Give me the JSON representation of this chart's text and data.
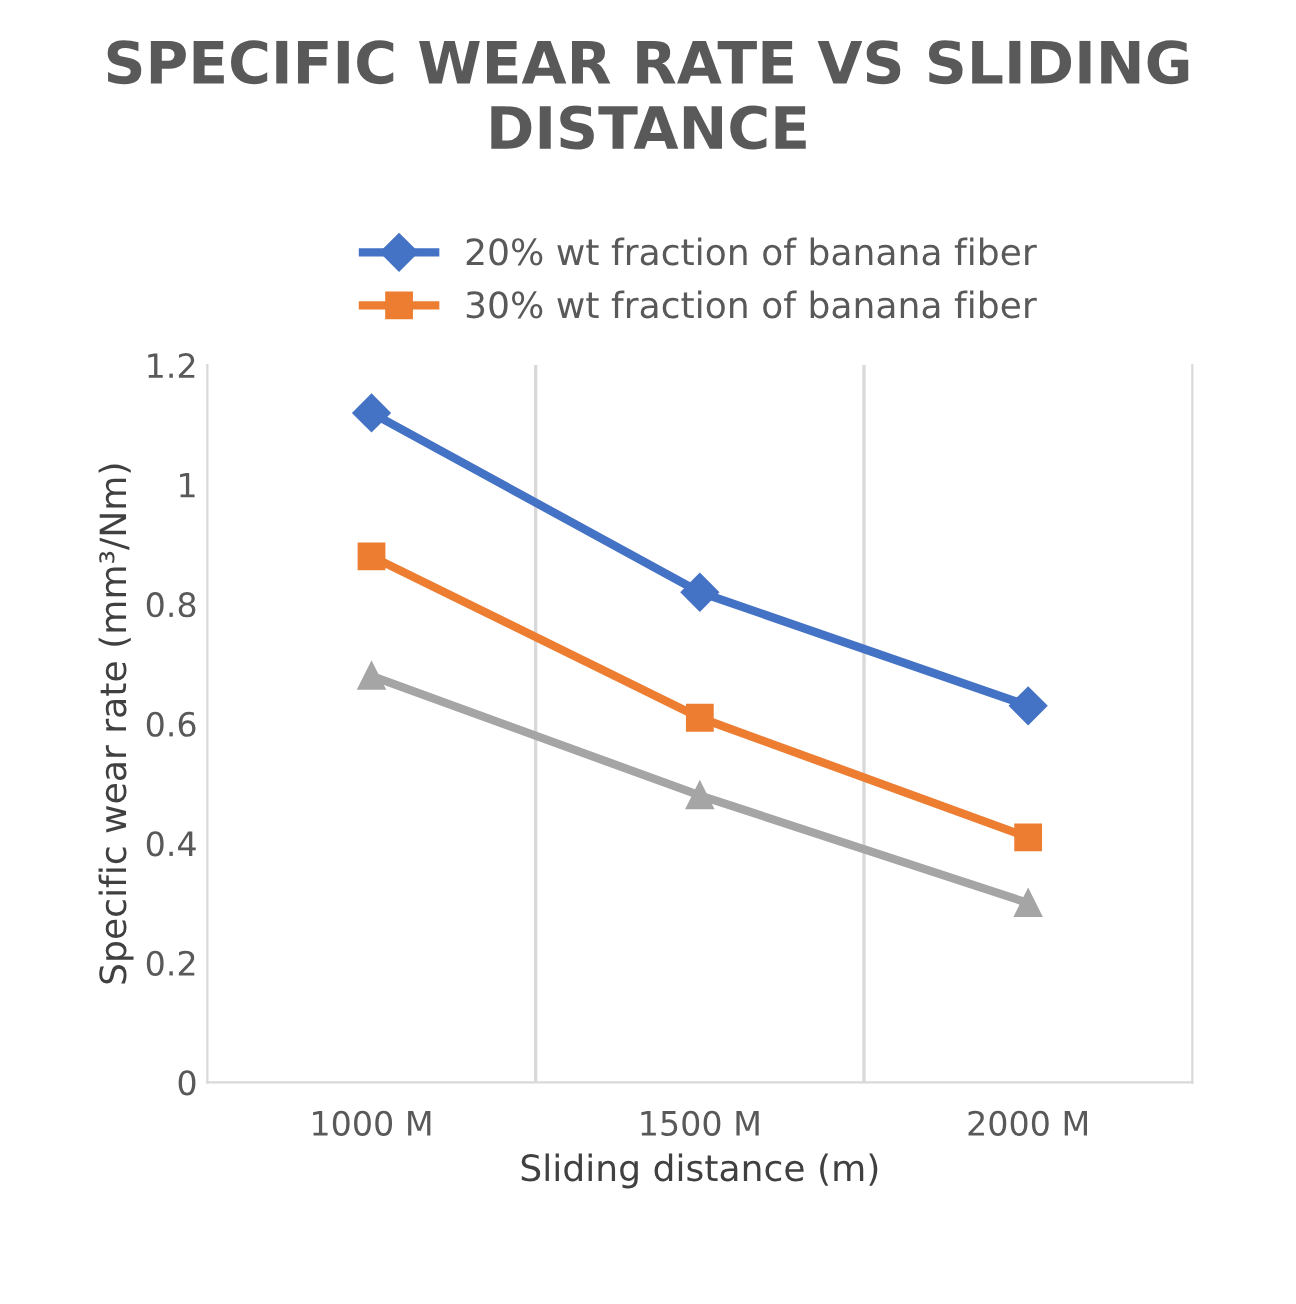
{
  "chart_data": {
    "type": "line",
    "title": "SPECIFIC WEAR RATE VS SLIDING DISTANCE",
    "xlabel": "Sliding distance (m)",
    "ylabel": "Specific wear rate (mm³/Nm)",
    "categories": [
      "1000 M",
      "1500 M",
      "2000 M"
    ],
    "series": [
      {
        "name": "20% wt fraction of banana fiber",
        "color": "#4472c4",
        "marker": "diamond",
        "values": [
          1.12,
          0.82,
          0.63
        ]
      },
      {
        "name": "30% wt fraction of banana fiber",
        "color": "#ed7d31",
        "marker": "square",
        "values": [
          0.88,
          0.61,
          0.41
        ]
      },
      {
        "color": "#a5a5a5",
        "marker": "triangle",
        "values": [
          0.68,
          0.48,
          0.3
        ]
      }
    ],
    "ylim": [
      0,
      1.2
    ],
    "yticks": [
      0,
      0.2,
      0.4,
      0.6,
      0.8,
      1,
      1.2
    ],
    "grid": "x",
    "legend": "top"
  }
}
